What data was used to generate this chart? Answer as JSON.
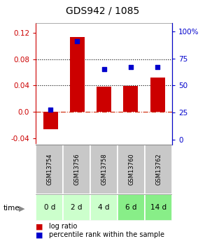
{
  "title": "GDS942 / 1085",
  "samples": [
    "GSM13754",
    "GSM13756",
    "GSM13758",
    "GSM13760",
    "GSM13762"
  ],
  "time_labels": [
    "0 d",
    "2 d",
    "4 d",
    "6 d",
    "14 d"
  ],
  "log_ratio": [
    -0.027,
    0.113,
    0.038,
    0.039,
    0.052
  ],
  "percentile_rank": [
    28,
    91,
    65,
    67,
    67
  ],
  "ylim_left": [
    -0.05,
    0.135
  ],
  "ylim_right": [
    -4.63,
    108
  ],
  "yticks_left": [
    -0.04,
    0.0,
    0.04,
    0.08,
    0.12
  ],
  "yticks_right": [
    0,
    25,
    50,
    75,
    100
  ],
  "bar_color": "#cc0000",
  "dot_color": "#0000cc",
  "hline_dotted_vals": [
    0.04,
    0.08
  ],
  "hline_dash_color": "#cc2200",
  "bg_plot": "#ffffff",
  "bg_gsm": "#c8c8c8",
  "bg_time_0": "#ccffcc",
  "bg_time_1": "#ccffcc",
  "bg_time_2": "#ccffcc",
  "bg_time_3": "#88ee88",
  "bg_time_4": "#88ee88",
  "border_color": "#888888",
  "legend_bar_label": "log ratio",
  "legend_dot_label": "percentile rank within the sample",
  "title_fontsize": 10,
  "tick_fontsize": 7.5,
  "gsm_fontsize": 6,
  "time_fontsize": 7.5,
  "legend_fontsize": 7
}
